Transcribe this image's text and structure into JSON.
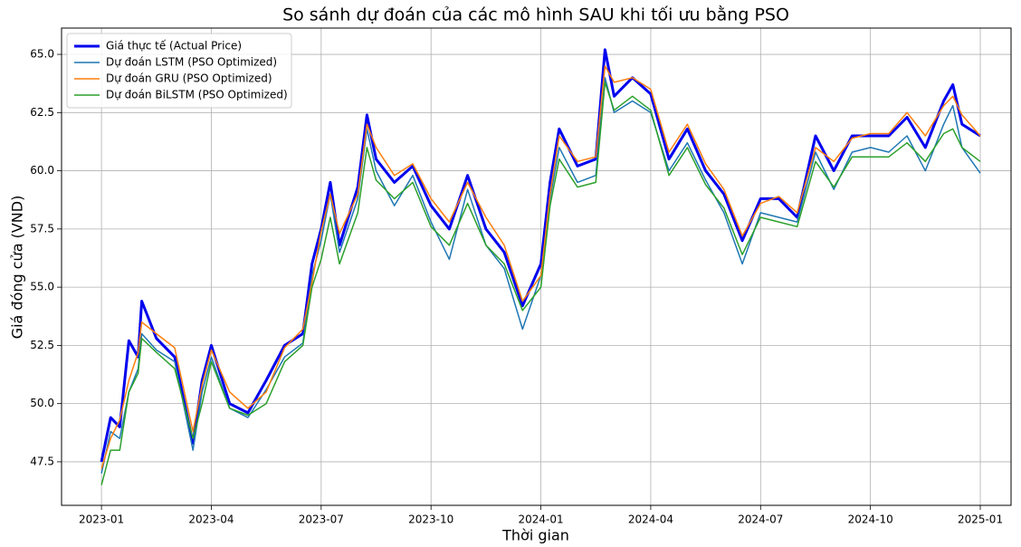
{
  "chart_data": {
    "type": "line",
    "title": "So sánh dự đoán của các mô hình SAU khi tối ưu bằng PSO",
    "x_label": "Thời gian",
    "y_label": "Giá đóng cửa (VND)",
    "x": [
      0,
      0.25,
      0.5,
      0.75,
      1,
      1.1,
      1.5,
      2,
      2.5,
      2.75,
      3,
      3.5,
      4,
      4.5,
      5,
      5.5,
      5.75,
      6,
      6.25,
      6.5,
      7,
      7.25,
      7.5,
      8,
      8.5,
      9,
      9.5,
      10,
      10.5,
      11,
      11.5,
      12,
      12.25,
      12.5,
      13,
      13.5,
      13.75,
      14,
      14.5,
      15,
      15.5,
      16,
      16.5,
      17,
      17.5,
      18,
      18.5,
      19,
      19.5,
      20,
      20.5,
      21,
      21.5,
      22,
      22.5,
      23,
      23.25,
      23.5,
      24
    ],
    "series": [
      {
        "name": "Giá thực tế (Actual Price)",
        "color": "#0000ee",
        "width": 3,
        "values": [
          47.5,
          49.4,
          49.0,
          52.7,
          52.0,
          54.4,
          52.8,
          52.0,
          48.3,
          51.0,
          52.5,
          50.0,
          49.6,
          51.0,
          52.5,
          53.0,
          56.0,
          57.5,
          59.5,
          56.8,
          59.3,
          62.4,
          60.5,
          59.5,
          60.2,
          58.5,
          57.5,
          59.8,
          57.5,
          56.5,
          54.2,
          56.0,
          59.5,
          61.8,
          60.2,
          60.5,
          65.2,
          63.2,
          64.0,
          63.3,
          60.5,
          61.8,
          60.0,
          59.0,
          57.0,
          58.8,
          58.8,
          58.0,
          61.5,
          60.0,
          61.5,
          61.5,
          61.5,
          62.3,
          61.0,
          63.0,
          63.7,
          62.0,
          61.5
        ]
      },
      {
        "name": "Dự đoán LSTM (PSO Optimized)",
        "color": "#1f77b4",
        "width": 1.5,
        "values": [
          47.0,
          48.8,
          48.5,
          50.5,
          51.5,
          53.0,
          52.3,
          51.8,
          48.0,
          50.5,
          52.0,
          49.8,
          49.4,
          50.6,
          52.0,
          52.6,
          55.5,
          57.0,
          59.0,
          56.5,
          58.8,
          61.8,
          60.0,
          58.5,
          59.8,
          57.8,
          56.2,
          59.2,
          56.8,
          55.8,
          53.2,
          55.5,
          58.8,
          61.0,
          59.5,
          59.8,
          64.0,
          62.5,
          63.0,
          62.5,
          60.0,
          61.2,
          59.6,
          58.2,
          56.0,
          58.2,
          58.0,
          57.8,
          60.8,
          59.2,
          60.8,
          61.0,
          60.8,
          61.5,
          60.0,
          62.0,
          62.8,
          61.0,
          59.9
        ]
      },
      {
        "name": "Dự đoán GRU (PSO Optimized)",
        "color": "#ff7f0e",
        "width": 1.5,
        "values": [
          47.2,
          48.5,
          49.3,
          51.0,
          52.2,
          53.5,
          53.0,
          52.4,
          48.8,
          50.8,
          52.3,
          50.5,
          49.8,
          50.5,
          52.4,
          53.2,
          55.2,
          57.4,
          59.0,
          57.3,
          59.0,
          62.0,
          61.0,
          59.8,
          60.3,
          58.8,
          57.8,
          59.5,
          58.0,
          56.8,
          54.4,
          55.5,
          59.0,
          61.5,
          60.4,
          60.6,
          64.5,
          63.8,
          64.0,
          63.5,
          60.8,
          62.0,
          60.3,
          59.2,
          57.2,
          58.6,
          58.9,
          58.2,
          61.0,
          60.4,
          61.4,
          61.6,
          61.6,
          62.5,
          61.5,
          62.8,
          63.2,
          62.4,
          61.5
        ]
      },
      {
        "name": "Dự đoán BiLSTM (PSO Optimized)",
        "color": "#2ca02c",
        "width": 1.5,
        "values": [
          46.5,
          48.0,
          48.0,
          50.5,
          51.3,
          52.8,
          52.2,
          51.5,
          48.5,
          50.0,
          51.8,
          49.8,
          49.5,
          50.0,
          51.8,
          52.5,
          55.0,
          56.2,
          58.0,
          56.0,
          58.2,
          61.0,
          59.6,
          58.8,
          59.5,
          57.6,
          56.8,
          58.6,
          56.8,
          56.0,
          54.0,
          55.0,
          58.5,
          60.5,
          59.3,
          59.5,
          63.8,
          62.6,
          63.2,
          62.6,
          59.8,
          61.0,
          59.4,
          58.4,
          56.4,
          58.0,
          57.8,
          57.6,
          60.4,
          59.3,
          60.6,
          60.6,
          60.6,
          61.2,
          60.4,
          61.6,
          61.8,
          61.0,
          60.4
        ]
      }
    ],
    "xlim": [
      -1.09,
      24.84
    ],
    "xticks": [
      {
        "value": 0,
        "label": "2023-01"
      },
      {
        "value": 3,
        "label": "2023-04"
      },
      {
        "value": 6,
        "label": "2023-07"
      },
      {
        "value": 9,
        "label": "2023-10"
      },
      {
        "value": 12,
        "label": "2024-01"
      },
      {
        "value": 15,
        "label": "2024-04"
      },
      {
        "value": 18,
        "label": "2024-07"
      },
      {
        "value": 21,
        "label": "2024-10"
      },
      {
        "value": 24,
        "label": "2025-01"
      }
    ],
    "ylim": [
      45.63,
      66.13
    ],
    "yticks": [
      47.5,
      {
        "value": 50,
        "label": "50.0"
      },
      52.5,
      {
        "value": 55,
        "label": "55.0"
      },
      57.5,
      {
        "value": 60,
        "label": "60.0"
      },
      62.5,
      {
        "value": 65,
        "label": "65.0"
      }
    ],
    "grid": true,
    "legend": "upper left"
  }
}
